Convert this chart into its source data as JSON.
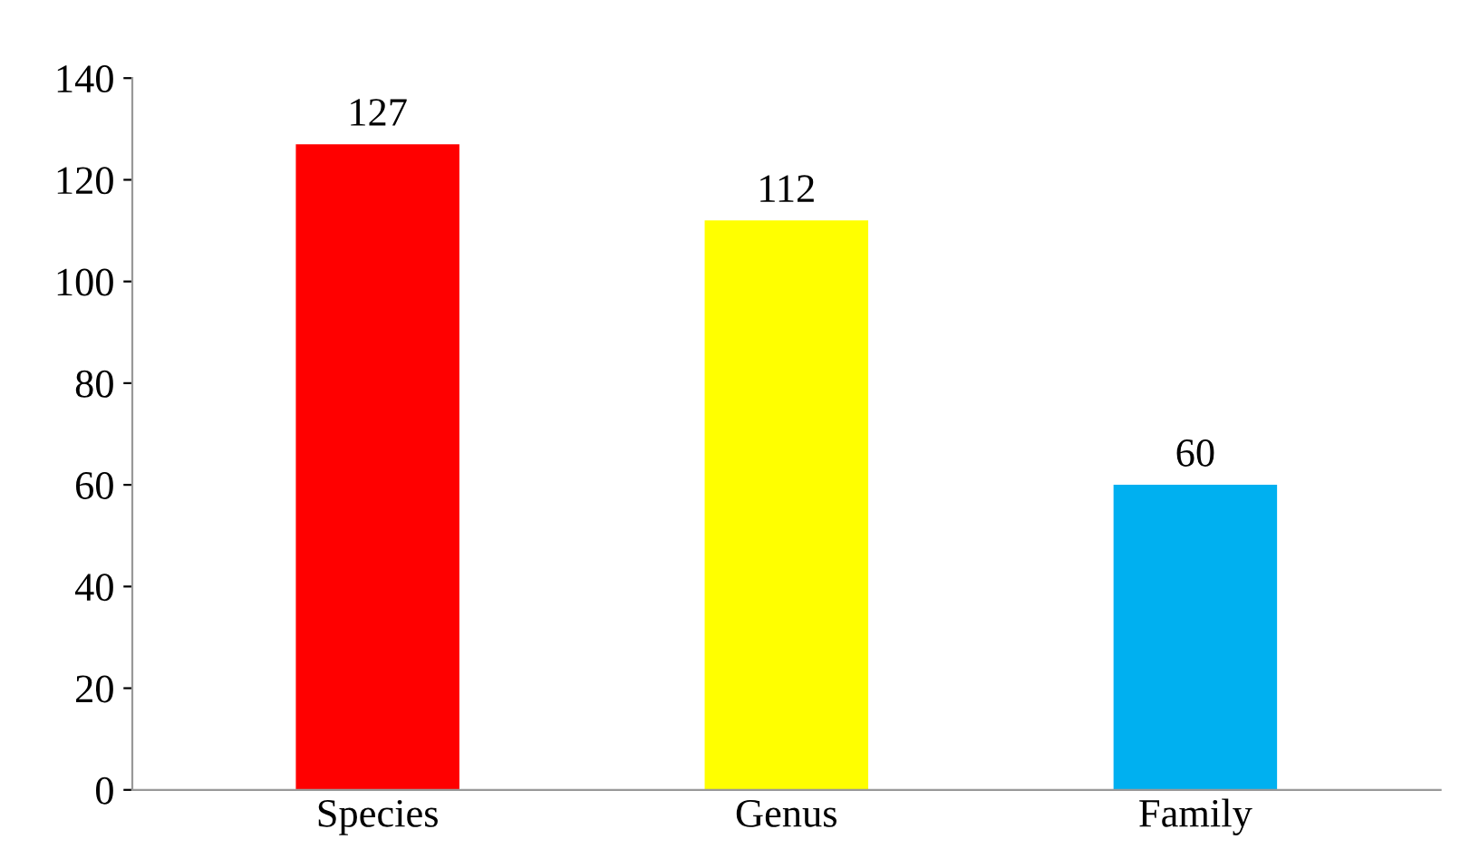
{
  "chart_data": {
    "type": "bar",
    "categories": [
      "Species",
      "Genus",
      "Family"
    ],
    "values": [
      127,
      112,
      60
    ],
    "colors": [
      "#ff0000",
      "#ffff00",
      "#00b0f0"
    ],
    "ylim": [
      0,
      140
    ],
    "yticks": [
      0,
      20,
      40,
      60,
      80,
      100,
      120,
      140
    ],
    "data_labels": true,
    "grid": false,
    "legend": false
  }
}
